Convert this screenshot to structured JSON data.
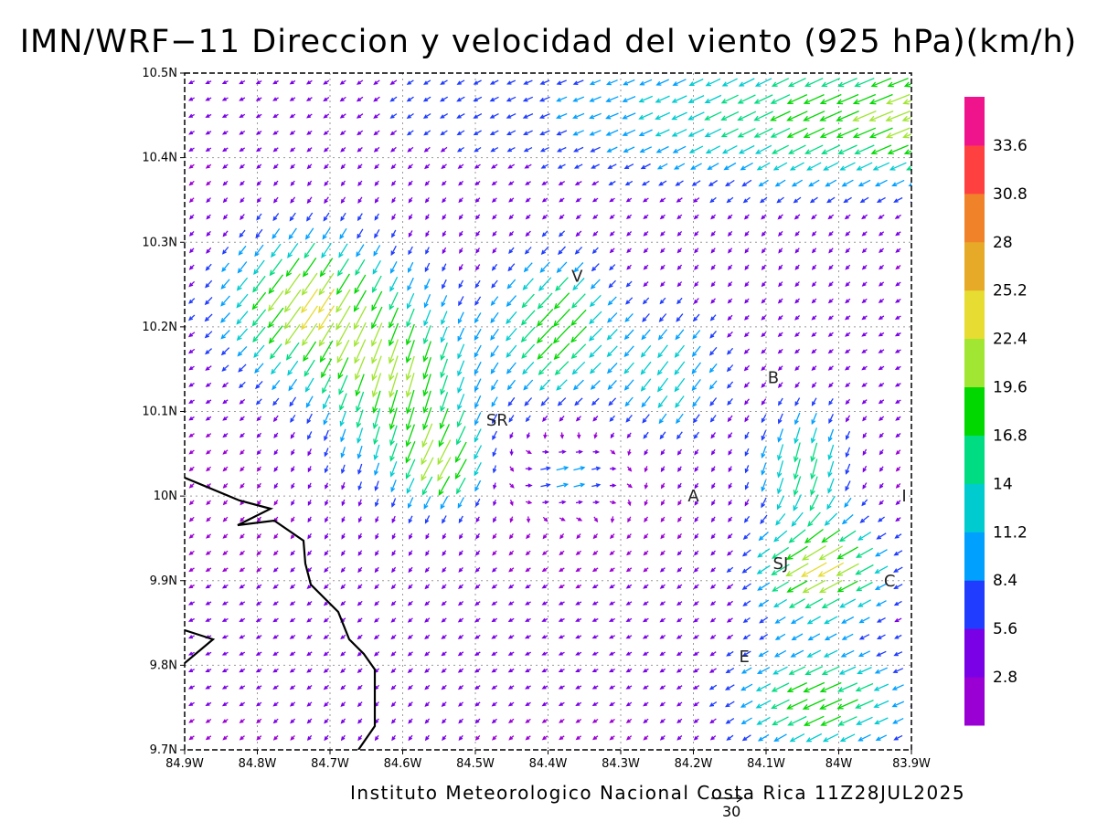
{
  "title": "IMN/WRF−11 Direccion y velocidad del viento (925 hPa)(km/h)",
  "credit": "Instituto Meteorologico Nacional Costa Rica 11Z28JUL2025",
  "reference_vector": {
    "value": "30"
  },
  "map": {
    "lon_range": [
      -84.9,
      -83.9
    ],
    "lat_range": [
      9.7,
      10.5
    ],
    "x_ticks": [
      "84.9W",
      "84.8W",
      "84.7W",
      "84.6W",
      "84.5W",
      "84.4W",
      "84.3W",
      "84.2W",
      "84.1W",
      "84W",
      "83.9W"
    ],
    "y_ticks": [
      "9.7N",
      "9.8N",
      "9.9N",
      "10N",
      "10.1N",
      "10.2N",
      "10.3N",
      "10.4N",
      "10.5N"
    ],
    "grid": "dotted",
    "places": [
      {
        "label": "V",
        "lon": -84.36,
        "lat": 10.26
      },
      {
        "label": "SR",
        "lon": -84.47,
        "lat": 10.09
      },
      {
        "label": "B",
        "lon": -84.09,
        "lat": 10.14
      },
      {
        "label": "A",
        "lon": -84.2,
        "lat": 10.0
      },
      {
        "label": "I",
        "lon": -83.91,
        "lat": 10.0
      },
      {
        "label": "SJ",
        "lon": -84.08,
        "lat": 9.92
      },
      {
        "label": "C",
        "lon": -83.93,
        "lat": 9.9
      },
      {
        "label": "E",
        "lon": -84.13,
        "lat": 9.81
      }
    ]
  },
  "colorbar": {
    "labels": [
      "2.8",
      "5.6",
      "8.4",
      "11.2",
      "14",
      "16.8",
      "19.6",
      "22.4",
      "25.2",
      "28",
      "30.8",
      "33.6"
    ],
    "colors": [
      "#9a00d4",
      "#7a00e6",
      "#1f3cff",
      "#00a0ff",
      "#00ccd0",
      "#00dc82",
      "#00d800",
      "#a0e632",
      "#e6dc32",
      "#e6aa28",
      "#f0822a",
      "#ff4040",
      "#f0148c"
    ]
  }
}
